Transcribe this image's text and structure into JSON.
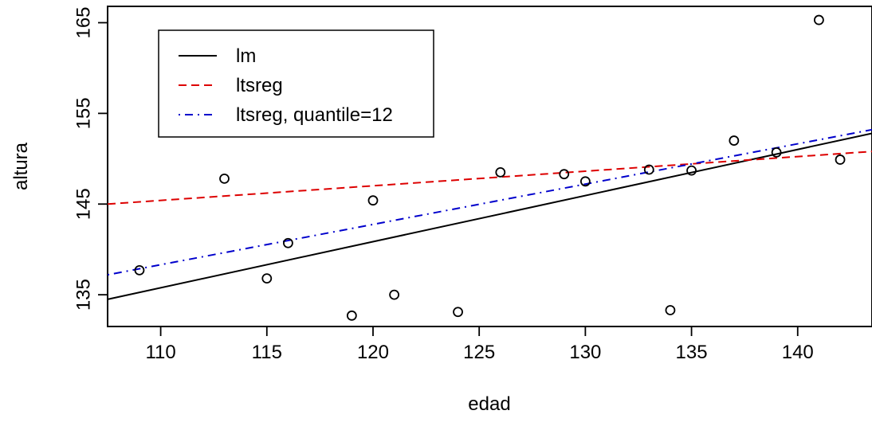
{
  "chart_data": {
    "type": "scatter",
    "xlabel": "edad",
    "ylabel": "altura",
    "xlim": [
      107.5,
      143.5
    ],
    "ylim": [
      131.5,
      166.8
    ],
    "xticks": [
      110,
      115,
      120,
      125,
      130,
      135,
      140
    ],
    "yticks": [
      135,
      145,
      155,
      165
    ],
    "points": [
      {
        "x": 109,
        "y": 137.7
      },
      {
        "x": 113,
        "y": 147.8
      },
      {
        "x": 115,
        "y": 136.8
      },
      {
        "x": 116,
        "y": 140.7
      },
      {
        "x": 119,
        "y": 132.7
      },
      {
        "x": 120,
        "y": 145.4
      },
      {
        "x": 121,
        "y": 135.0
      },
      {
        "x": 124,
        "y": 133.1
      },
      {
        "x": 126,
        "y": 148.5
      },
      {
        "x": 129,
        "y": 148.3
      },
      {
        "x": 130,
        "y": 147.5
      },
      {
        "x": 133,
        "y": 148.8
      },
      {
        "x": 134,
        "y": 133.3
      },
      {
        "x": 135,
        "y": 148.7
      },
      {
        "x": 137,
        "y": 152.0
      },
      {
        "x": 139,
        "y": 150.7
      },
      {
        "x": 141,
        "y": 165.3
      },
      {
        "x": 142,
        "y": 149.9
      }
    ],
    "series": [
      {
        "name": "lm",
        "color": "#000000",
        "dash": "solid",
        "x": [
          107.5,
          143.5
        ],
        "y": [
          134.5,
          152.8
        ]
      },
      {
        "name": "ltsreg",
        "color": "#dd0000",
        "dash": "dashed",
        "x": [
          107.5,
          143.5
        ],
        "y": [
          145.0,
          150.8
        ]
      },
      {
        "name": "ltsreg, quantile=12",
        "color": "#0000cc",
        "dash": "dotdash",
        "x": [
          107.5,
          143.5
        ],
        "y": [
          137.2,
          153.2
        ]
      }
    ],
    "legend_position": "top-left"
  }
}
